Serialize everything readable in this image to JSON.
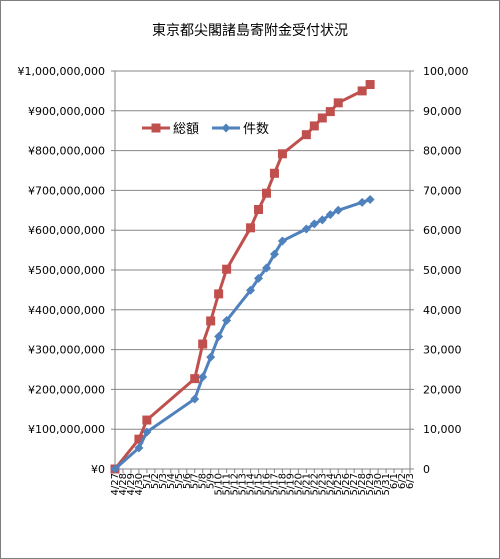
{
  "chart_data": {
    "type": "line",
    "title": "東京都尖閣諸島寄附金受付状況",
    "xlabel": "",
    "ylabel": "",
    "y2label": "",
    "categories": [
      "4/27",
      "4/28",
      "4/29",
      "4/30",
      "5/1",
      "5/2",
      "5/3",
      "5/4",
      "5/5",
      "5/6",
      "5/7",
      "5/8",
      "5/9",
      "5/10",
      "5/11",
      "5/12",
      "5/13",
      "5/14",
      "5/15",
      "5/16",
      "5/17",
      "5/18",
      "5/19",
      "5/20",
      "5/21",
      "5/22",
      "5/23",
      "5/24",
      "5/25",
      "5/26",
      "5/27",
      "5/28",
      "5/29",
      "5/30",
      "5/31",
      "6/1",
      "6/2",
      "6/3"
    ],
    "ylim_left": [
      0,
      1000000000
    ],
    "ylim_right": [
      0,
      100000
    ],
    "yticks_left": [
      "¥0",
      "¥100,000,000",
      "¥200,000,000",
      "¥300,000,000",
      "¥400,000,000",
      "¥500,000,000",
      "¥600,000,000",
      "¥700,000,000",
      "¥800,000,000",
      "¥900,000,000",
      "¥1,000,000,000"
    ],
    "yticks_right": [
      "0",
      "10,000",
      "20,000",
      "30,000",
      "40,000",
      "50,000",
      "60,000",
      "70,000",
      "80,000",
      "90,000",
      "100,000"
    ],
    "grid": true,
    "legend_position": "top-left",
    "series": [
      {
        "name": "総額",
        "axis": "left",
        "color": "#c0504d",
        "marker": "square",
        "points": [
          {
            "x": "4/27",
            "y": 0
          },
          {
            "x": "4/30",
            "y": 75000000
          },
          {
            "x": "5/1",
            "y": 123000000
          },
          {
            "x": "5/7",
            "y": 227000000
          },
          {
            "x": "5/8",
            "y": 314000000
          },
          {
            "x": "5/9",
            "y": 372000000
          },
          {
            "x": "5/10",
            "y": 440000000
          },
          {
            "x": "5/11",
            "y": 502000000
          },
          {
            "x": "5/14",
            "y": 606000000
          },
          {
            "x": "5/15",
            "y": 652000000
          },
          {
            "x": "5/16",
            "y": 693000000
          },
          {
            "x": "5/17",
            "y": 743000000
          },
          {
            "x": "5/18",
            "y": 792000000
          },
          {
            "x": "5/21",
            "y": 840000000
          },
          {
            "x": "5/22",
            "y": 862000000
          },
          {
            "x": "5/23",
            "y": 882000000
          },
          {
            "x": "5/24",
            "y": 898000000
          },
          {
            "x": "5/25",
            "y": 920000000
          },
          {
            "x": "5/28",
            "y": 950000000
          },
          {
            "x": "5/29",
            "y": 966000000
          }
        ]
      },
      {
        "name": "件数",
        "axis": "right",
        "color": "#4f81bd",
        "marker": "diamond",
        "points": [
          {
            "x": "4/27",
            "y": 0
          },
          {
            "x": "4/30",
            "y": 5300
          },
          {
            "x": "5/1",
            "y": 9300
          },
          {
            "x": "5/7",
            "y": 17600
          },
          {
            "x": "5/8",
            "y": 23100
          },
          {
            "x": "5/9",
            "y": 28100
          },
          {
            "x": "5/10",
            "y": 33300
          },
          {
            "x": "5/11",
            "y": 37300
          },
          {
            "x": "5/14",
            "y": 44900
          },
          {
            "x": "5/15",
            "y": 47900
          },
          {
            "x": "5/16",
            "y": 50500
          },
          {
            "x": "5/17",
            "y": 54000
          },
          {
            "x": "5/18",
            "y": 57300
          },
          {
            "x": "5/21",
            "y": 60300
          },
          {
            "x": "5/22",
            "y": 61600
          },
          {
            "x": "5/23",
            "y": 62600
          },
          {
            "x": "5/24",
            "y": 63900
          },
          {
            "x": "5/25",
            "y": 65000
          },
          {
            "x": "5/28",
            "y": 67000
          },
          {
            "x": "5/29",
            "y": 67700
          }
        ]
      }
    ]
  }
}
